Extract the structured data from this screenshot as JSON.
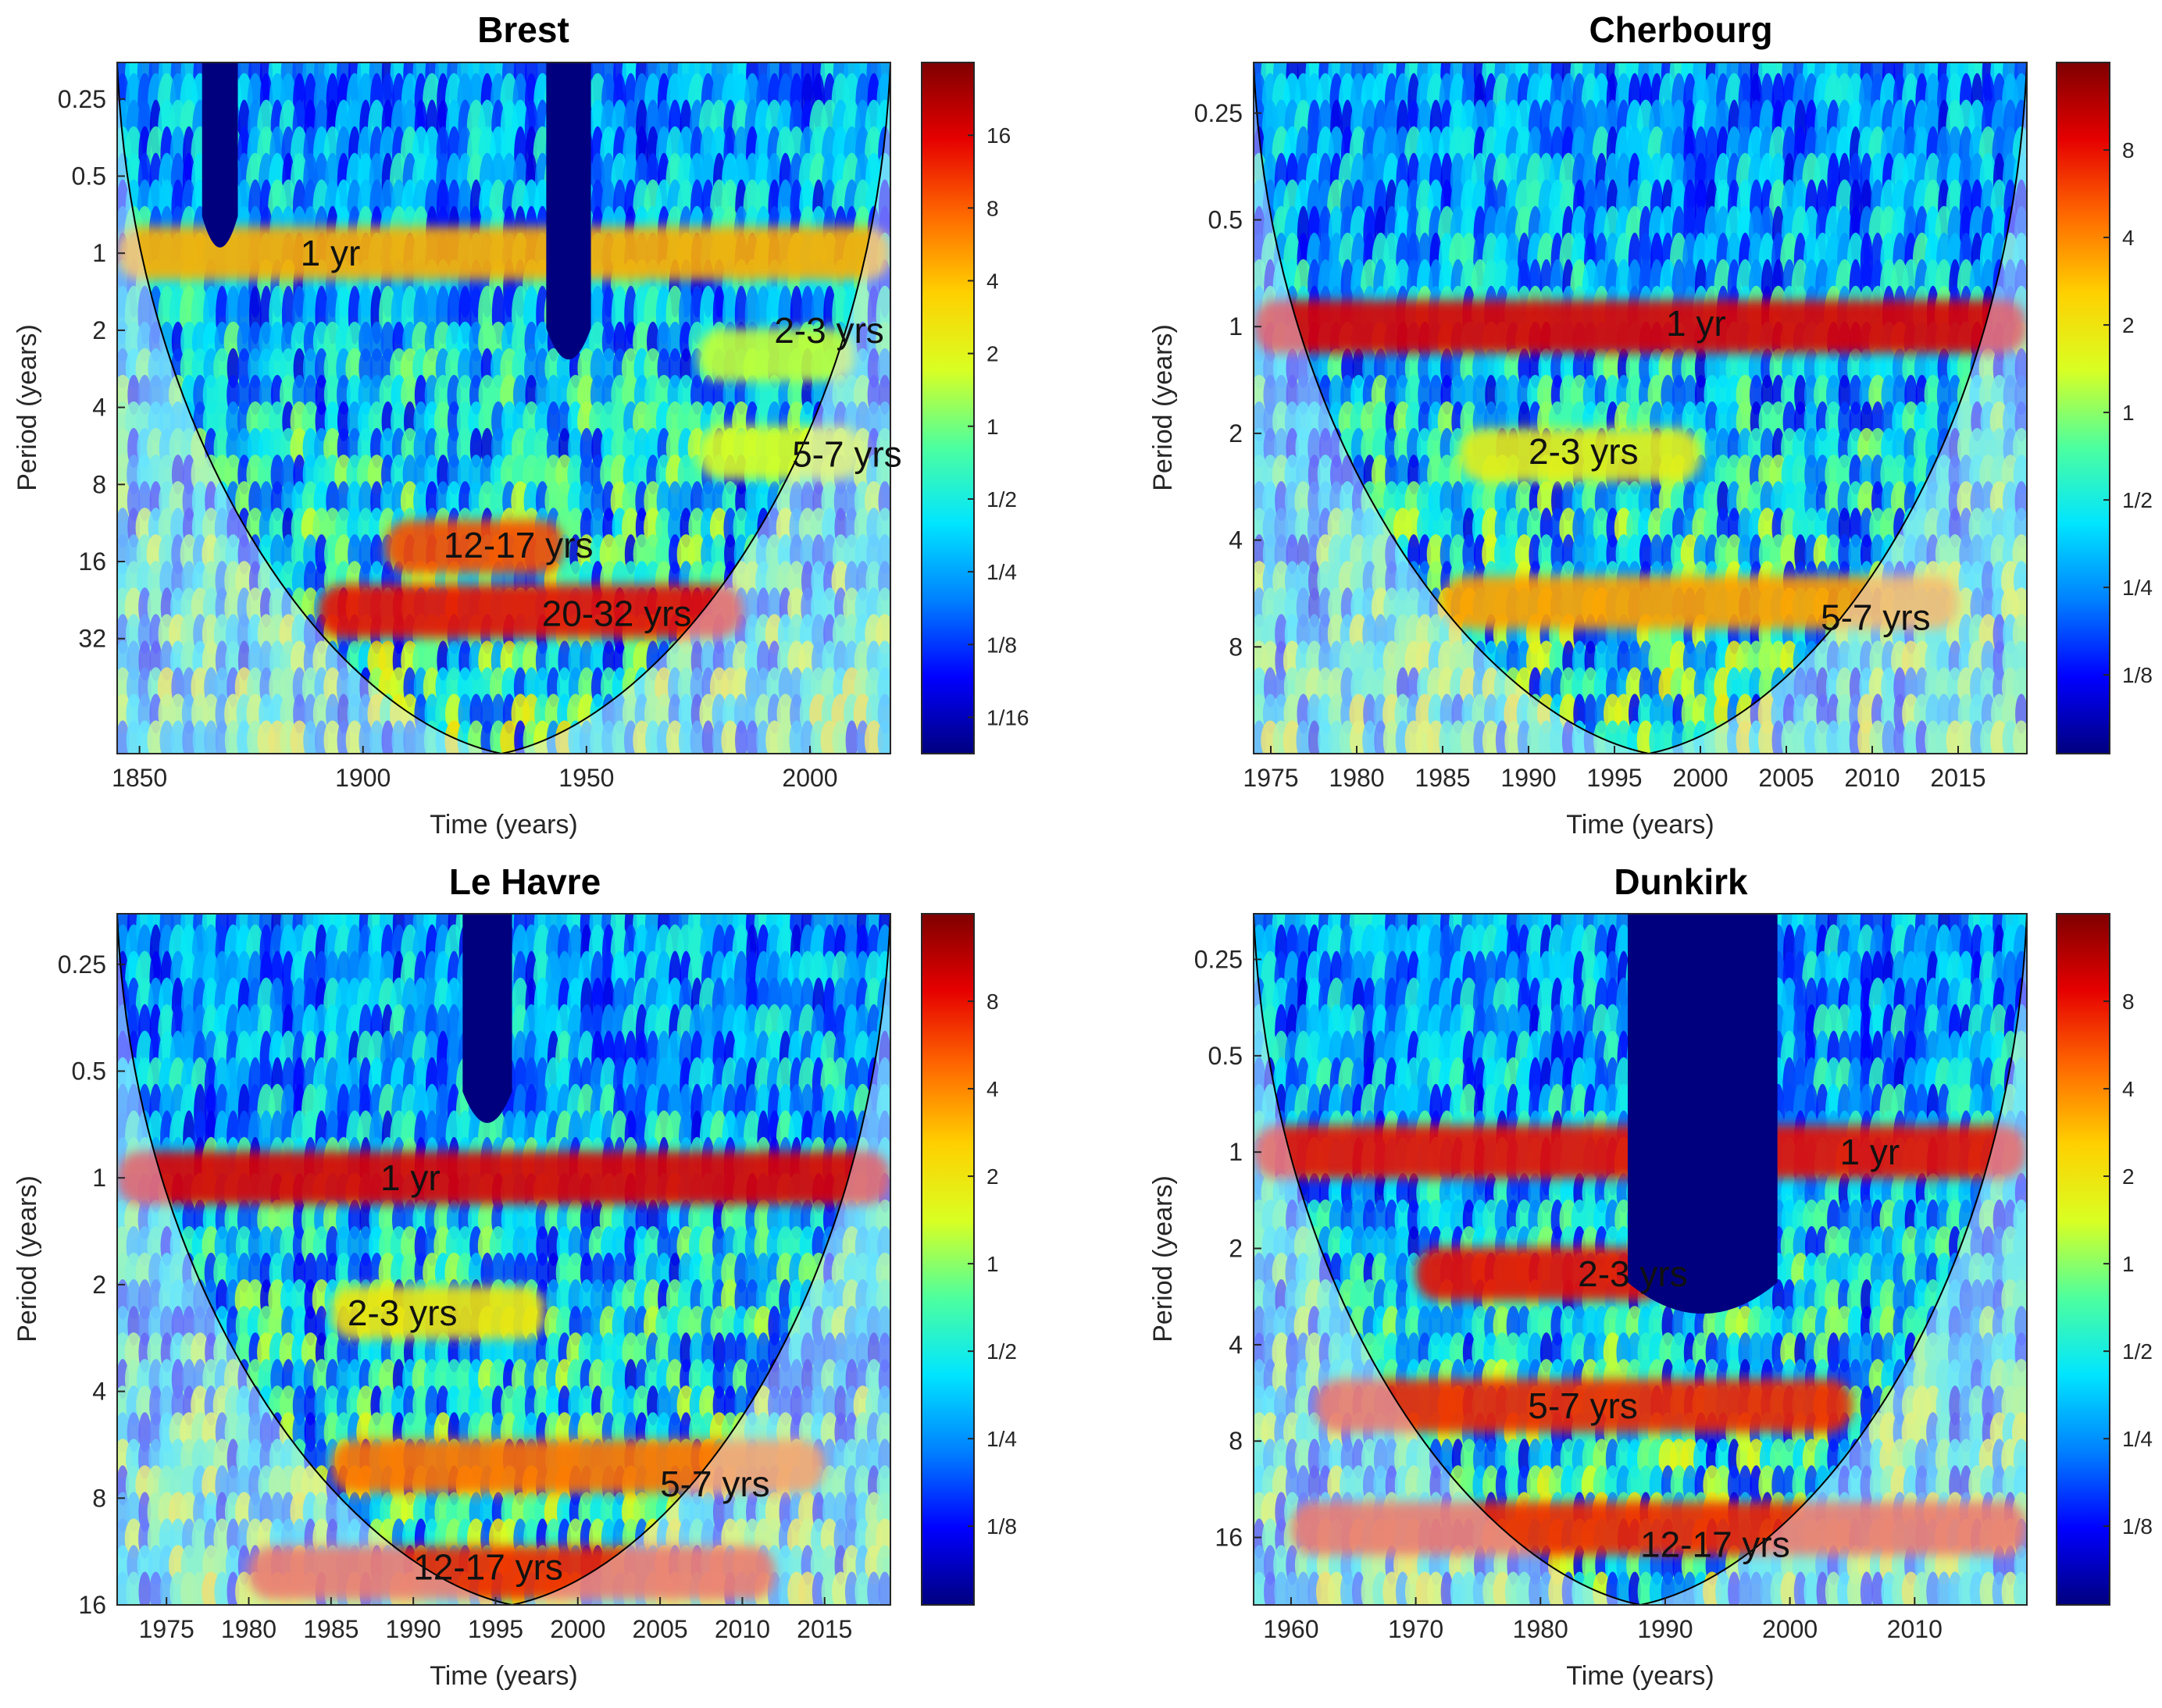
{
  "palette": {
    "jet": [
      "#00007f",
      "#0000ff",
      "#0080ff",
      "#00e5ff",
      "#4dff9e",
      "#d9ff22",
      "#ffd000",
      "#ff6a00",
      "#e60000",
      "#7f0000"
    ],
    "coi_shade": "#e6e6ff",
    "background": "#ffffff"
  },
  "chart_data": [
    {
      "type": "heatmap",
      "id": "brest",
      "title": "Brest",
      "xlabel": "Time (years)",
      "ylabel": "Period (years)",
      "xlim": [
        1845,
        2018
      ],
      "ylim_period": [
        0.18,
        90
      ],
      "xticks": [
        1850,
        1900,
        1950,
        2000
      ],
      "yticks": [
        {
          "value": 0.25,
          "label": "0.25"
        },
        {
          "value": 0.5,
          "label": "0.5"
        },
        {
          "value": 1,
          "label": "1"
        },
        {
          "value": 2,
          "label": "2"
        },
        {
          "value": 4,
          "label": "4"
        },
        {
          "value": 8,
          "label": "8"
        },
        {
          "value": 16,
          "label": "16"
        },
        {
          "value": 32,
          "label": "32"
        }
      ],
      "colorbar": {
        "range_log2": [
          -4.5,
          5.0
        ],
        "ticks": [
          {
            "value": 0.0625,
            "label": "1/16"
          },
          {
            "value": 0.125,
            "label": "1/8"
          },
          {
            "value": 0.25,
            "label": "1/4"
          },
          {
            "value": 0.5,
            "label": "1/2"
          },
          {
            "value": 1,
            "label": "1"
          },
          {
            "value": 2,
            "label": "2"
          },
          {
            "value": 4,
            "label": "4"
          },
          {
            "value": 8,
            "label": "8"
          },
          {
            "value": 16,
            "label": "16"
          }
        ]
      },
      "coi": {
        "center": 1931
      },
      "gaps": [
        {
          "x0": 1864,
          "x1": 1872,
          "min_period": 0.18,
          "max_period": 0.95
        },
        {
          "x0": 1941,
          "x1": 1951,
          "min_period": 0.18,
          "max_period": 2.6
        }
      ],
      "bands": [
        {
          "label": "1 yr",
          "period": 1.0,
          "x0": 1845,
          "x1": 2018,
          "power": 2.2
        },
        {
          "label": "2-3 yrs",
          "period": 2.5,
          "x0": 1975,
          "x1": 2010,
          "power": 0.6
        },
        {
          "label": "5-7 yrs",
          "period": 6.0,
          "x0": 1975,
          "x1": 2012,
          "power": 0.8
        },
        {
          "label": "12-17 yrs",
          "period": 14.0,
          "x0": 1905,
          "x1": 1945,
          "power": 3.2
        },
        {
          "label": "20-32 yrs",
          "period": 25.0,
          "x0": 1890,
          "x1": 1985,
          "power": 3.8
        }
      ],
      "labels": [
        {
          "text": "1 yr",
          "x": 1886,
          "period": 1.0
        },
        {
          "text": "2-3 yrs",
          "x": 1992,
          "period": 2.0
        },
        {
          "text": "5-7 yrs",
          "x": 1996,
          "period": 6.1
        },
        {
          "text": "12-17 yrs",
          "x": 1918,
          "period": 13.8
        },
        {
          "text": "20-32 yrs",
          "x": 1940,
          "period": 25.5
        }
      ]
    },
    {
      "type": "heatmap",
      "id": "cherbourg",
      "title": "Cherbourg",
      "xlabel": "Time (years)",
      "ylabel": "Period (years)",
      "xlim": [
        1974,
        2019
      ],
      "ylim_period": [
        0.18,
        16
      ],
      "xticks": [
        1975,
        1980,
        1985,
        1990,
        1995,
        2000,
        2005,
        2010,
        2015
      ],
      "yticks": [
        {
          "value": 0.25,
          "label": "0.25"
        },
        {
          "value": 0.5,
          "label": "0.5"
        },
        {
          "value": 1,
          "label": "1"
        },
        {
          "value": 2,
          "label": "2"
        },
        {
          "value": 4,
          "label": "4"
        },
        {
          "value": 8,
          "label": "8"
        }
      ],
      "colorbar": {
        "range_log2": [
          -3.9,
          4.0
        ],
        "ticks": [
          {
            "value": 0.125,
            "label": "1/8"
          },
          {
            "value": 0.25,
            "label": "1/4"
          },
          {
            "value": 0.5,
            "label": "1/2"
          },
          {
            "value": 1,
            "label": "1"
          },
          {
            "value": 2,
            "label": "2"
          },
          {
            "value": 4,
            "label": "4"
          },
          {
            "value": 8,
            "label": "8"
          }
        ]
      },
      "coi": {
        "center": 1997
      },
      "gaps": [],
      "bands": [
        {
          "label": "1 yr",
          "period": 1.0,
          "x0": 1974,
          "x1": 2019,
          "power": 3.2
        },
        {
          "label": "2-3 yrs",
          "period": 2.3,
          "x0": 1986,
          "x1": 2000,
          "power": 0.8
        },
        {
          "label": "5-7 yrs",
          "period": 6.0,
          "x0": 1985,
          "x1": 2015,
          "power": 1.8
        }
      ],
      "labels": [
        {
          "text": "1 yr",
          "x": 1998,
          "period": 0.98
        },
        {
          "text": "2-3 yrs",
          "x": 1990,
          "period": 2.25
        },
        {
          "text": "5-7 yrs",
          "x": 2007,
          "period": 6.6
        }
      ]
    },
    {
      "type": "heatmap",
      "id": "le-havre",
      "title": "Le Havre",
      "xlabel": "Time (years)",
      "ylabel": "Period (years)",
      "xlim": [
        1972,
        2019
      ],
      "ylim_period": [
        0.18,
        16
      ],
      "xticks": [
        1975,
        1980,
        1985,
        1990,
        1995,
        2000,
        2005,
        2010,
        2015
      ],
      "yticks": [
        {
          "value": 0.25,
          "label": "0.25"
        },
        {
          "value": 0.5,
          "label": "0.5"
        },
        {
          "value": 1,
          "label": "1"
        },
        {
          "value": 2,
          "label": "2"
        },
        {
          "value": 4,
          "label": "4"
        },
        {
          "value": 8,
          "label": "8"
        },
        {
          "value": 16,
          "label": "16"
        }
      ],
      "colorbar": {
        "range_log2": [
          -3.9,
          4.0
        ],
        "ticks": [
          {
            "value": 0.125,
            "label": "1/8"
          },
          {
            "value": 0.25,
            "label": "1/4"
          },
          {
            "value": 0.5,
            "label": "1/2"
          },
          {
            "value": 1,
            "label": "1"
          },
          {
            "value": 2,
            "label": "2"
          },
          {
            "value": 4,
            "label": "4"
          },
          {
            "value": 8,
            "label": "8"
          }
        ]
      },
      "coi": {
        "center": 1996
      },
      "gaps": [
        {
          "x0": 1993,
          "x1": 1996,
          "min_period": 0.18,
          "max_period": 0.7
        }
      ],
      "bands": [
        {
          "label": "1 yr",
          "period": 1.0,
          "x0": 1972,
          "x1": 2019,
          "power": 3.2
        },
        {
          "label": "2-3 yrs",
          "period": 2.4,
          "x0": 1985,
          "x1": 1998,
          "power": 1.0
        },
        {
          "label": "5-7 yrs",
          "period": 6.5,
          "x0": 1985,
          "x1": 2015,
          "power": 2.2
        },
        {
          "label": "12-17 yrs",
          "period": 13.0,
          "x0": 1980,
          "x1": 2012,
          "power": 2.8
        }
      ],
      "labels": [
        {
          "text": "1 yr",
          "x": 1988,
          "period": 1.0
        },
        {
          "text": "2-3 yrs",
          "x": 1986,
          "period": 2.4
        },
        {
          "text": "5-7 yrs",
          "x": 2005,
          "period": 7.3
        },
        {
          "text": "12-17 yrs",
          "x": 1990,
          "period": 12.5
        }
      ]
    },
    {
      "type": "heatmap",
      "id": "dunkirk",
      "title": "Dunkirk",
      "xlabel": "Time (years)",
      "ylabel": "Period (years)",
      "xlim": [
        1957,
        2019
      ],
      "ylim_period": [
        0.18,
        26
      ],
      "xticks": [
        1960,
        1970,
        1980,
        1990,
        2000,
        2010
      ],
      "yticks": [
        {
          "value": 0.25,
          "label": "0.25"
        },
        {
          "value": 0.5,
          "label": "0.5"
        },
        {
          "value": 1,
          "label": "1"
        },
        {
          "value": 2,
          "label": "2"
        },
        {
          "value": 4,
          "label": "4"
        },
        {
          "value": 8,
          "label": "8"
        },
        {
          "value": 16,
          "label": "16"
        }
      ],
      "colorbar": {
        "range_log2": [
          -3.9,
          4.0
        ],
        "ticks": [
          {
            "value": 0.125,
            "label": "1/8"
          },
          {
            "value": 0.25,
            "label": "1/4"
          },
          {
            "value": 0.5,
            "label": "1/2"
          },
          {
            "value": 1,
            "label": "1"
          },
          {
            "value": 2,
            "label": "2"
          },
          {
            "value": 4,
            "label": "4"
          },
          {
            "value": 8,
            "label": "8"
          }
        ]
      },
      "coi": {
        "center": 1988
      },
      "gaps": [
        {
          "x0": 1987,
          "x1": 1999,
          "min_period": 0.18,
          "max_period": 3.2
        }
      ],
      "bands": [
        {
          "label": "1 yr",
          "period": 1.0,
          "x0": 1957,
          "x1": 2019,
          "power": 3.0
        },
        {
          "label": "2-3 yrs",
          "period": 2.4,
          "x0": 1970,
          "x1": 1990,
          "power": 3.0
        },
        {
          "label": "5-7 yrs",
          "period": 6.2,
          "x0": 1962,
          "x1": 2005,
          "power": 2.8
        },
        {
          "label": "12-17 yrs",
          "period": 15.0,
          "x0": 1960,
          "x1": 2019,
          "power": 2.8
        }
      ],
      "labels": [
        {
          "text": "1 yr",
          "x": 2004,
          "period": 1.0
        },
        {
          "text": "2-3 yrs",
          "x": 1983,
          "period": 2.4
        },
        {
          "text": "5-7 yrs",
          "x": 1979,
          "period": 6.2
        },
        {
          "text": "12-17 yrs",
          "x": 1988,
          "period": 16.8
        }
      ]
    }
  ]
}
